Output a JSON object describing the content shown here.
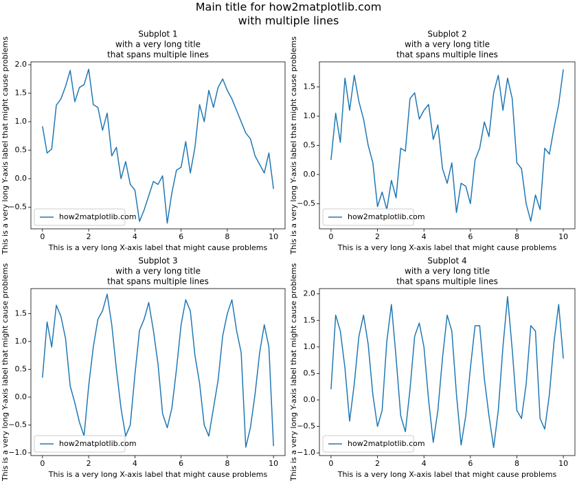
{
  "title": [
    "Main title for how2matplotlib.com",
    "with multiple lines"
  ],
  "chart_data": [
    {
      "type": "line",
      "title": [
        "Subplot 1",
        "with a very long title",
        "that spans multiple lines"
      ],
      "xlabel": "This is a very long X-axis label that might cause problems",
      "ylabel": "This is a very long Y-axis label that might cause problems",
      "x": [
        0,
        0.2,
        0.4,
        0.6,
        0.8,
        1,
        1.2,
        1.4,
        1.6,
        1.8,
        2,
        2.2,
        2.4,
        2.6,
        2.8,
        3,
        3.2,
        3.4,
        3.6,
        3.8,
        4,
        4.2,
        4.4,
        4.6,
        4.8,
        5,
        5.2,
        5.4,
        5.6,
        5.8,
        6,
        6.2,
        6.4,
        6.6,
        6.8,
        7,
        7.2,
        7.4,
        7.6,
        7.8,
        8,
        8.2,
        8.4,
        8.6,
        8.8,
        9,
        9.2,
        9.4,
        9.6,
        9.8,
        10
      ],
      "series": [
        {
          "name": "how2matplotlib.com",
          "color": "#1f77b4",
          "values": [
            0.92,
            0.45,
            0.52,
            1.29,
            1.4,
            1.62,
            1.9,
            1.35,
            1.6,
            1.65,
            1.92,
            1.3,
            1.25,
            0.85,
            1.15,
            0.4,
            0.55,
            0,
            0.3,
            -0.1,
            -0.2,
            -0.75,
            -0.55,
            -0.3,
            -0.05,
            -0.1,
            0.05,
            -0.78,
            -0.25,
            0.15,
            0.2,
            0.65,
            0.1,
            0.55,
            1.3,
            1,
            1.55,
            1.25,
            1.6,
            1.75,
            1.55,
            1.4,
            1.2,
            1,
            0.8,
            0.7,
            0.4,
            0.25,
            0.1,
            0.45,
            -0.18
          ]
        }
      ],
      "xlim": [
        -0.5,
        10.5
      ],
      "xticks": [
        0,
        2,
        4,
        6,
        8,
        10
      ],
      "ylim": [
        -0.88,
        2.05
      ],
      "yticks": [
        {
          "value": -0.5,
          "label": "−0.5"
        },
        {
          "value": 0,
          "label": "0.0"
        },
        {
          "value": 0.5,
          "label": "0.5"
        },
        {
          "value": 1,
          "label": "1.0"
        },
        {
          "value": 1.5,
          "label": "1.5"
        },
        {
          "value": 2,
          "label": "2.0"
        }
      ],
      "legend": "lower left"
    },
    {
      "type": "line",
      "title": [
        "Subplot 2",
        "with a very long title",
        "that spans multiple lines"
      ],
      "xlabel": "This is a very long X-axis label that might cause problems",
      "ylabel": "This is a very long Y-axis label that might cause problems",
      "x": [
        0,
        0.2,
        0.4,
        0.6,
        0.8,
        1,
        1.2,
        1.4,
        1.6,
        1.8,
        2,
        2.2,
        2.4,
        2.6,
        2.8,
        3,
        3.2,
        3.4,
        3.6,
        3.8,
        4,
        4.2,
        4.4,
        4.6,
        4.8,
        5,
        5.2,
        5.4,
        5.6,
        5.8,
        6,
        6.2,
        6.4,
        6.6,
        6.8,
        7,
        7.2,
        7.4,
        7.6,
        7.8,
        8,
        8.2,
        8.4,
        8.6,
        8.8,
        9,
        9.2,
        9.4,
        9.6,
        9.8,
        10
      ],
      "series": [
        {
          "name": "how2matplotlib.com",
          "color": "#1f77b4",
          "values": [
            0.25,
            1.05,
            0.55,
            1.65,
            1.1,
            1.7,
            1.25,
            0.95,
            0.5,
            0.2,
            -0.55,
            -0.3,
            -0.6,
            -0.1,
            -0.4,
            0.45,
            0.4,
            1.3,
            1.4,
            0.95,
            1.1,
            1.2,
            0.6,
            0.85,
            0.1,
            -0.15,
            0.2,
            -0.65,
            -0.15,
            -0.2,
            -0.5,
            0.25,
            0.45,
            0.9,
            0.65,
            1.4,
            1.7,
            1.1,
            1.65,
            1.3,
            0.2,
            0.1,
            -0.5,
            -0.8,
            -0.35,
            -0.6,
            0.45,
            0.35,
            0.8,
            1.2,
            1.8
          ]
        }
      ],
      "xlim": [
        -0.5,
        10.5
      ],
      "xticks": [
        0,
        2,
        4,
        6,
        8,
        10
      ],
      "ylim": [
        -0.93,
        1.93
      ],
      "yticks": [
        {
          "value": -0.5,
          "label": "−0.5"
        },
        {
          "value": 0,
          "label": "0.0"
        },
        {
          "value": 0.5,
          "label": "0.5"
        },
        {
          "value": 1,
          "label": "1.0"
        },
        {
          "value": 1.5,
          "label": "1.5"
        }
      ],
      "legend": "lower left"
    },
    {
      "type": "line",
      "title": [
        "Subplot 3",
        "with a very long title",
        "that spans multiple lines"
      ],
      "xlabel": "This is a very long X-axis label that might cause problems",
      "ylabel": "This is a very long Y-axis label that might cause problems",
      "x": [
        0,
        0.2,
        0.4,
        0.6,
        0.8,
        1,
        1.2,
        1.4,
        1.6,
        1.8,
        2,
        2.2,
        2.4,
        2.6,
        2.8,
        3,
        3.2,
        3.4,
        3.6,
        3.8,
        4,
        4.2,
        4.4,
        4.6,
        4.8,
        5,
        5.2,
        5.4,
        5.6,
        5.8,
        6,
        6.2,
        6.4,
        6.6,
        6.8,
        7,
        7.2,
        7.4,
        7.6,
        7.8,
        8,
        8.2,
        8.4,
        8.6,
        8.8,
        9,
        9.2,
        9.4,
        9.6,
        9.8,
        10
      ],
      "series": [
        {
          "name": "how2matplotlib.com",
          "color": "#1f77b4",
          "values": [
            0.35,
            1.35,
            0.9,
            1.65,
            1.45,
            1.05,
            0.2,
            -0.1,
            -0.45,
            -0.7,
            0.2,
            0.9,
            1.4,
            1.55,
            1.85,
            1.3,
            0.5,
            -0.2,
            -0.7,
            -0.5,
            0.4,
            1.2,
            1.4,
            1.7,
            1.2,
            0.6,
            -0.3,
            -0.55,
            -0.2,
            0.5,
            1.3,
            1.75,
            1.55,
            0.75,
            0.25,
            -0.5,
            -0.7,
            -0.2,
            0.3,
            1.1,
            1.5,
            1.75,
            1.2,
            0.8,
            -0.9,
            -0.55,
            0.05,
            0.8,
            1.3,
            0.9,
            -0.88
          ]
        }
      ],
      "xlim": [
        -0.5,
        10.5
      ],
      "xticks": [
        0,
        2,
        4,
        6,
        8,
        10
      ],
      "ylim": [
        -1.05,
        1.95
      ],
      "yticks": [
        {
          "value": -1,
          "label": "−1.0"
        },
        {
          "value": -0.5,
          "label": "−0.5"
        },
        {
          "value": 0,
          "label": "0.0"
        },
        {
          "value": 0.5,
          "label": "0.5"
        },
        {
          "value": 1,
          "label": "1.0"
        },
        {
          "value": 1.5,
          "label": "1.5"
        }
      ],
      "legend": "lower left"
    },
    {
      "type": "line",
      "title": [
        "Subplot 4",
        "with a very long title",
        "that spans multiple lines"
      ],
      "xlabel": "This is a very long X-axis label that might cause problems",
      "ylabel": "This is a very long Y-axis label that might cause problems",
      "x": [
        0,
        0.2,
        0.4,
        0.6,
        0.8,
        1,
        1.2,
        1.4,
        1.6,
        1.8,
        2,
        2.2,
        2.4,
        2.6,
        2.8,
        3,
        3.2,
        3.4,
        3.6,
        3.8,
        4,
        4.2,
        4.4,
        4.6,
        4.8,
        5,
        5.2,
        5.4,
        5.6,
        5.8,
        6,
        6.2,
        6.4,
        6.6,
        6.8,
        7,
        7.2,
        7.4,
        7.6,
        7.8,
        8,
        8.2,
        8.4,
        8.6,
        8.8,
        9,
        9.2,
        9.4,
        9.6,
        9.8,
        10
      ],
      "series": [
        {
          "name": "how2matplotlib.com",
          "color": "#1f77b4",
          "values": [
            0.2,
            1.6,
            1.3,
            0.6,
            -0.4,
            0.3,
            1.2,
            1.6,
            1.05,
            0.1,
            -0.5,
            -0.2,
            1.1,
            1.8,
            0.8,
            -0.3,
            -0.6,
            0.2,
            1.2,
            1.45,
            1,
            0,
            -0.8,
            -0.2,
            0.8,
            1.6,
            1.3,
            0.1,
            -0.85,
            -0.3,
            0.6,
            1.4,
            1.4,
            0.4,
            -0.3,
            -0.9,
            -0.2,
            1,
            1.95,
            0.95,
            -0.2,
            -0.35,
            0.3,
            1.4,
            1.3,
            -0.35,
            -0.55,
            0.1,
            1.1,
            1.8,
            0.78
          ]
        }
      ],
      "xlim": [
        -0.5,
        10.5
      ],
      "xticks": [
        0,
        2,
        4,
        6,
        8,
        10
      ],
      "ylim": [
        -1.05,
        2.1
      ],
      "yticks": [
        {
          "value": -1,
          "label": "−1.0"
        },
        {
          "value": -0.5,
          "label": "−0.5"
        },
        {
          "value": 0,
          "label": "0.0"
        },
        {
          "value": 0.5,
          "label": "0.5"
        },
        {
          "value": 1,
          "label": "1.0"
        },
        {
          "value": 1.5,
          "label": "1.5"
        },
        {
          "value": 2,
          "label": "2.0"
        }
      ],
      "legend": "lower left"
    }
  ]
}
